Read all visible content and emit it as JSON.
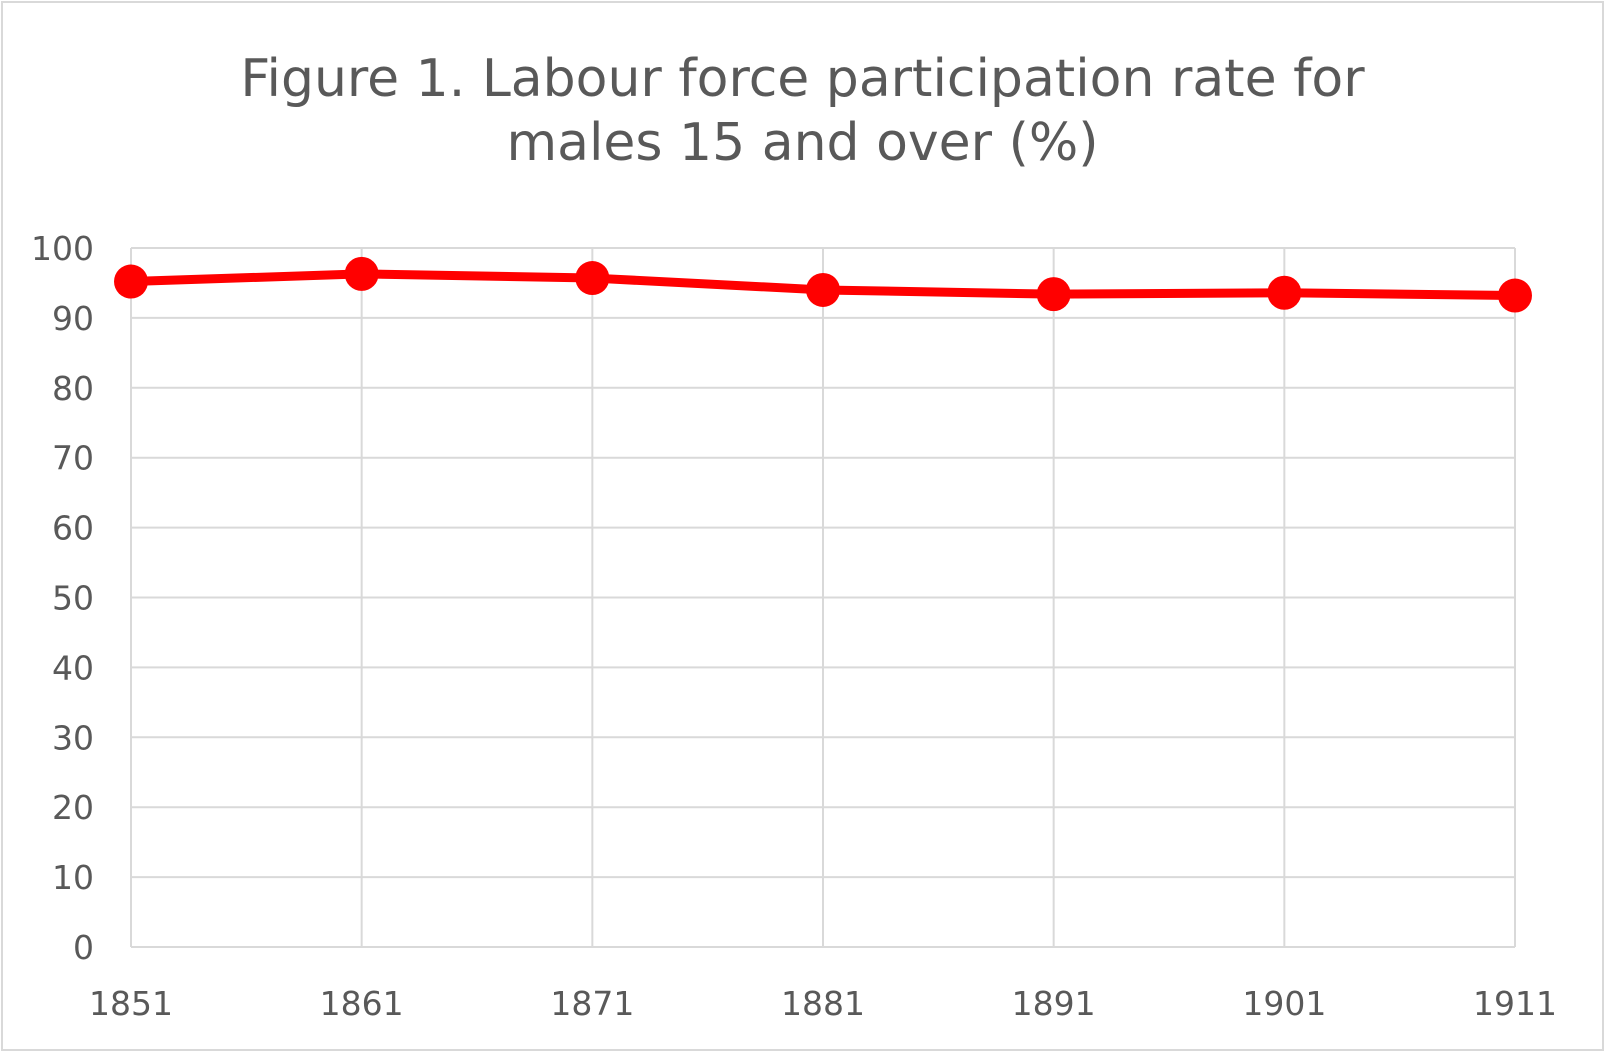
{
  "chart_data": {
    "type": "line",
    "title": [
      "Figure 1. Labour force participation rate for",
      "males 15 and over  (%)"
    ],
    "xlabel": "",
    "ylabel": "",
    "categories": [
      "1851",
      "1861",
      "1871",
      "1881",
      "1891",
      "1901",
      "1911"
    ],
    "series": [
      {
        "values": [
          95.2,
          96.3,
          95.7,
          94.0,
          93.4,
          93.6,
          93.2
        ],
        "color": "#ff0000"
      }
    ],
    "ylim": [
      0,
      100
    ],
    "yticks": [
      0,
      10,
      20,
      30,
      40,
      50,
      60,
      70,
      80,
      90,
      100
    ],
    "grid": {
      "horizontal": true,
      "vertical": true
    },
    "legend": "none",
    "colors": {
      "grid": "#d9d9d9",
      "tick_label": "#595959",
      "title": "#595959"
    }
  }
}
